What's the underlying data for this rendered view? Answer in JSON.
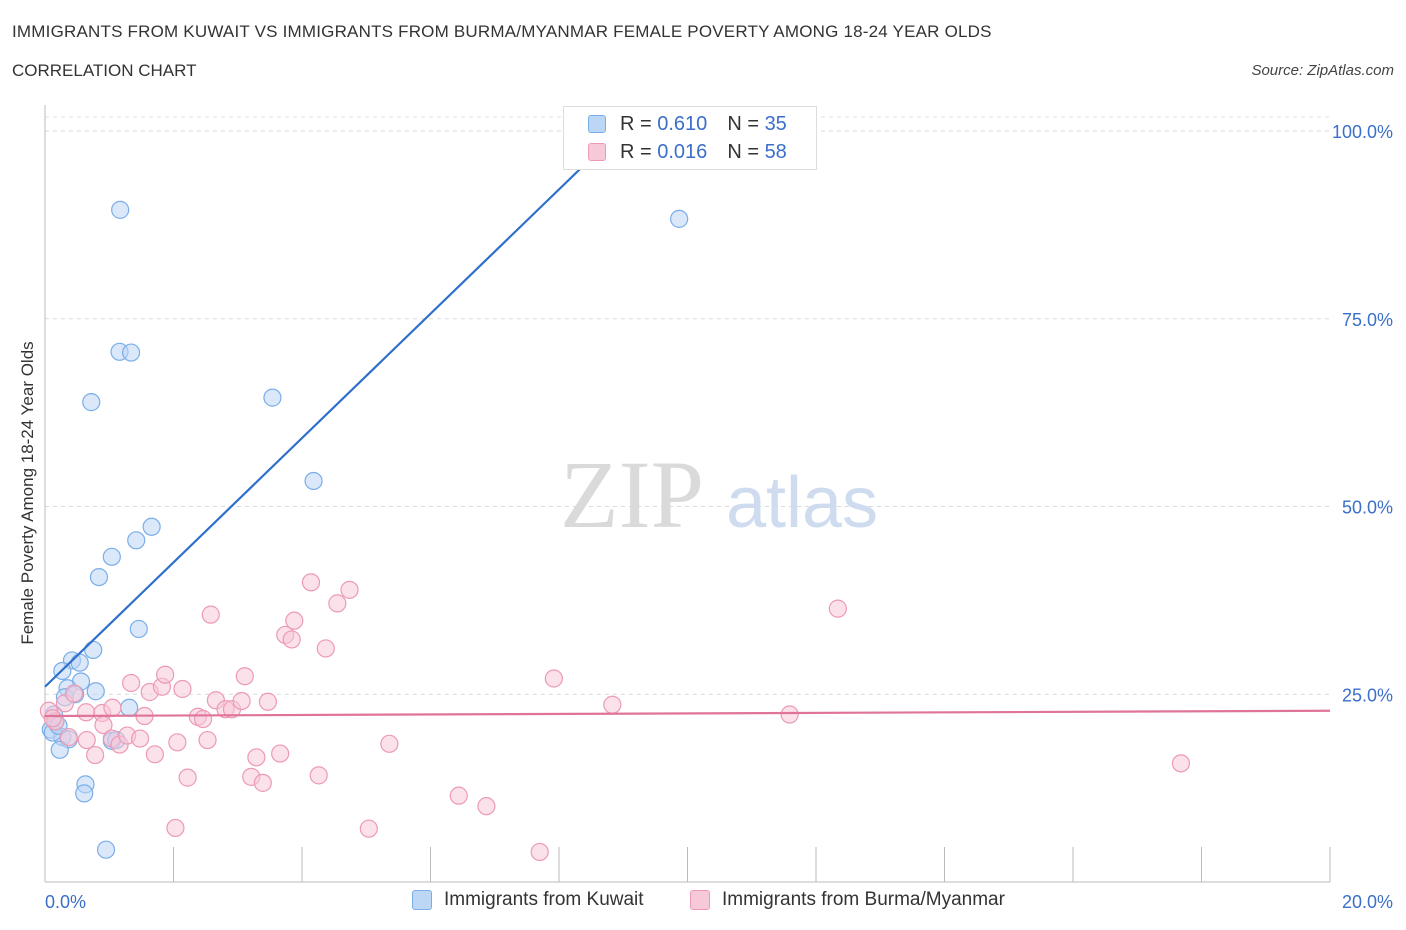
{
  "title": "IMMIGRANTS FROM KUWAIT VS IMMIGRANTS FROM BURMA/MYANMAR FEMALE POVERTY AMONG 18-24 YEAR OLDS",
  "subtitle": "CORRELATION CHART",
  "source": "Source: ZipAtlas.com",
  "watermark": {
    "zip": "ZIP",
    "atlas": "atlas"
  },
  "legend_top": [
    {
      "r_label": "R =",
      "r_value": "0.610",
      "n_label": "N =",
      "n_value": "35",
      "color": "#a8c8f0"
    },
    {
      "r_label": "R =",
      "r_value": "0.016",
      "n_label": "N =",
      "n_value": "58",
      "color": "#f5b8cb"
    }
  ],
  "chart_data": {
    "type": "scatter",
    "title": "IMMIGRANTS FROM KUWAIT VS IMMIGRANTS FROM BURMA/MYANMAR FEMALE POVERTY AMONG 18-24 YEAR OLDS",
    "xlabel": "",
    "ylabel": "Female Poverty Among 18-24 Year Olds",
    "xlim": [
      0,
      20
    ],
    "ylim": [
      0,
      100
    ],
    "x_tick_labels": [
      "0.0%",
      "20.0%"
    ],
    "y_tick_labels": [
      "25.0%",
      "50.0%",
      "75.0%",
      "100.0%"
    ],
    "y_ticks": [
      25,
      50,
      75,
      100
    ],
    "series": [
      {
        "name": "Immigrants from Kuwait",
        "color": "#7aaee8",
        "fill": "#bcd6f5",
        "line_color": "#2f6fcc",
        "trend": {
          "x0": 0,
          "y0": 26.0,
          "x1": 9.0,
          "y1": 100.5
        },
        "points": [
          [
            1.17,
            89.5
          ],
          [
            9.87,
            88.3
          ],
          [
            1.16,
            70.6
          ],
          [
            1.34,
            70.5
          ],
          [
            0.72,
            63.9
          ],
          [
            3.54,
            64.5
          ],
          [
            4.18,
            53.4
          ],
          [
            1.66,
            47.3
          ],
          [
            1.42,
            45.5
          ],
          [
            1.04,
            43.3
          ],
          [
            0.84,
            40.6
          ],
          [
            1.46,
            33.7
          ],
          [
            0.75,
            30.9
          ],
          [
            0.42,
            29.5
          ],
          [
            0.54,
            29.2
          ],
          [
            0.27,
            28.1
          ],
          [
            0.56,
            26.7
          ],
          [
            0.35,
            25.8
          ],
          [
            0.79,
            25.4
          ],
          [
            0.31,
            24.6
          ],
          [
            0.47,
            25.0
          ],
          [
            1.31,
            23.2
          ],
          [
            0.14,
            22.3
          ],
          [
            0.16,
            21.3
          ],
          [
            0.09,
            20.3
          ],
          [
            0.27,
            19.3
          ],
          [
            0.12,
            19.9
          ],
          [
            0.37,
            19.0
          ],
          [
            1.04,
            18.8
          ],
          [
            1.11,
            18.9
          ],
          [
            0.23,
            17.6
          ],
          [
            0.63,
            13.0
          ],
          [
            0.61,
            11.8
          ],
          [
            0.95,
            4.3
          ],
          [
            0.21,
            20.8
          ]
        ]
      },
      {
        "name": "Immigrants from Burma/Myanmar",
        "color": "#ec9ab5",
        "fill": "#f7c9d8",
        "line_color": "#e07399",
        "trend": {
          "x0": 0,
          "y0": 22.1,
          "x1": 20,
          "y1": 22.8
        },
        "points": [
          [
            0.06,
            22.8
          ],
          [
            0.16,
            21.4
          ],
          [
            0.31,
            23.8
          ],
          [
            0.45,
            25.1
          ],
          [
            0.64,
            22.6
          ],
          [
            0.37,
            19.3
          ],
          [
            0.65,
            18.9
          ],
          [
            0.78,
            16.9
          ],
          [
            0.89,
            22.5
          ],
          [
            0.91,
            20.9
          ],
          [
            1.05,
            23.2
          ],
          [
            1.04,
            19.1
          ],
          [
            1.16,
            18.3
          ],
          [
            1.28,
            19.5
          ],
          [
            1.34,
            26.5
          ],
          [
            1.48,
            19.1
          ],
          [
            1.55,
            22.1
          ],
          [
            1.63,
            25.3
          ],
          [
            1.71,
            17.0
          ],
          [
            1.82,
            26.0
          ],
          [
            1.87,
            27.6
          ],
          [
            2.06,
            18.6
          ],
          [
            2.14,
            25.7
          ],
          [
            2.22,
            13.9
          ],
          [
            2.38,
            22.0
          ],
          [
            2.46,
            21.7
          ],
          [
            2.53,
            18.9
          ],
          [
            2.58,
            35.6
          ],
          [
            2.66,
            24.2
          ],
          [
            2.81,
            23.0
          ],
          [
            2.91,
            23.0
          ],
          [
            3.06,
            24.1
          ],
          [
            3.11,
            27.4
          ],
          [
            3.21,
            14.0
          ],
          [
            3.29,
            16.6
          ],
          [
            3.39,
            13.2
          ],
          [
            3.47,
            24.0
          ],
          [
            3.66,
            17.1
          ],
          [
            3.74,
            32.9
          ],
          [
            3.84,
            32.3
          ],
          [
            3.88,
            34.8
          ],
          [
            4.14,
            39.9
          ],
          [
            4.26,
            14.2
          ],
          [
            4.37,
            31.1
          ],
          [
            4.55,
            37.1
          ],
          [
            4.74,
            38.9
          ],
          [
            5.04,
            7.1
          ],
          [
            5.36,
            18.4
          ],
          [
            6.44,
            11.5
          ],
          [
            6.87,
            10.1
          ],
          [
            7.7,
            4.0
          ],
          [
            7.92,
            27.1
          ],
          [
            8.83,
            23.6
          ],
          [
            11.59,
            22.3
          ],
          [
            12.34,
            36.4
          ],
          [
            17.68,
            15.8
          ],
          [
            2.03,
            7.2
          ],
          [
            0.12,
            21.8
          ]
        ]
      }
    ]
  },
  "bottom_legend": [
    {
      "label": "Immigrants from Kuwait",
      "color": "#a8c8f0"
    },
    {
      "label": "Immigrants from Burma/Myanmar",
      "color": "#f5b8cb"
    }
  ]
}
